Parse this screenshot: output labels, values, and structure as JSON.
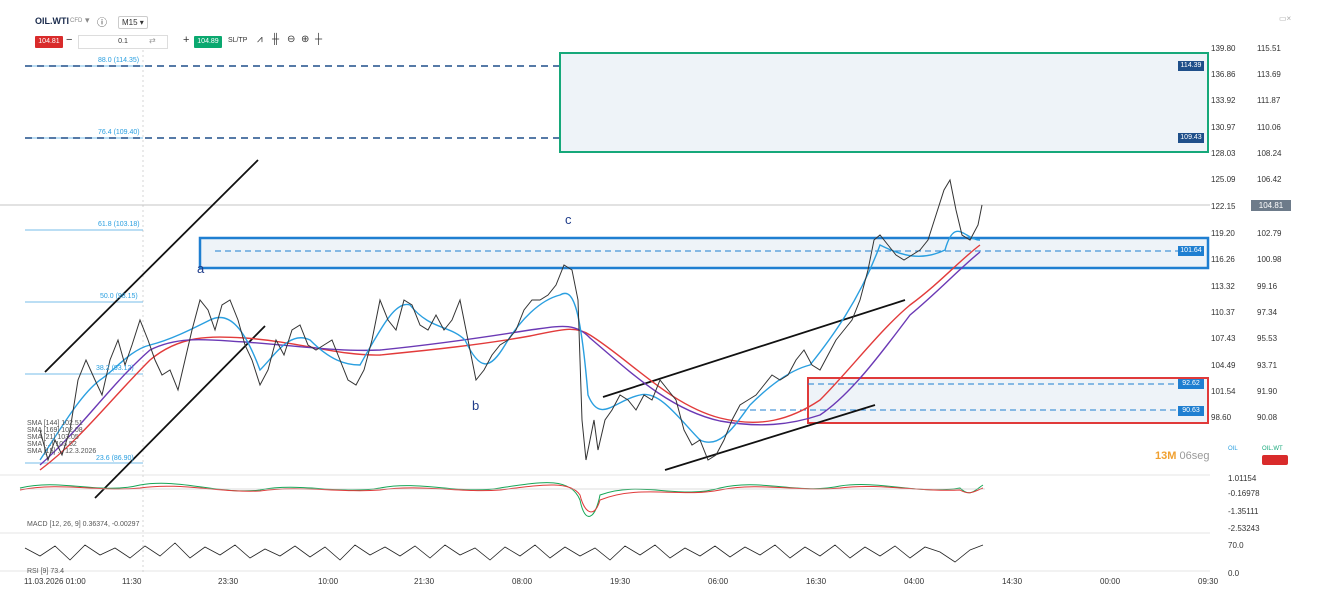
{
  "header": {
    "symbol": "OIL.WTI",
    "symbol_sub": "CFD",
    "timeframe": "M15 ▾",
    "sell_price": "104.81",
    "volume": "0.1",
    "buy_price": "104.89",
    "sltp_label": "SL/TP"
  },
  "price_axis_left": [
    "139.80",
    "136.86",
    "133.92",
    "130.97",
    "128.03",
    "125.09",
    "122.15",
    "119.20",
    "116.26",
    "113.32",
    "110.37",
    "107.43",
    "104.49",
    "101.54",
    "98.60"
  ],
  "price_axis_right": [
    "115.51",
    "113.69",
    "111.87",
    "110.06",
    "108.24",
    "106.42",
    "104.81",
    "102.79",
    "100.98",
    "99.16",
    "97.34",
    "95.53",
    "93.71",
    "91.90",
    "90.08"
  ],
  "current_price_label": "104.81",
  "level_labels": {
    "upper_1": "114.39",
    "upper_2": "109.43",
    "zone_mid": "101.64",
    "lower_1": "92.62",
    "lower_2": "90.63"
  },
  "fib_labels": {
    "f88": "88.0 (114.35)",
    "f764": "76.4 (109.40)",
    "f618": "61.8 (103.18)",
    "f50": "50.0 (98.15)",
    "f382": "38.2 (93.12)",
    "f236": "23.6 (86.90)"
  },
  "wave_labels": {
    "a": "a",
    "b": "b",
    "c": "c"
  },
  "indicators": {
    "sma1": "SMA [144] 102.51",
    "sma2": "SMA [169] 102.08",
    "sma3": "SMA [21] 103.05",
    "sma4": "SMA [...] 103.52",
    "sma5": "SMA [15] ... 12.3.2026",
    "macd": "MACD [12, 26, 9] 0.36374, -0.00297",
    "rsi": "RSI [9] 73.4"
  },
  "macd_axis": [
    "1.01154",
    "-0.16978",
    "-1.35111",
    "-2.53243"
  ],
  "rsi_axis": [
    "70.0",
    "0.0"
  ],
  "time_axis": [
    "11.03.2026 01:00",
    "11:30",
    "23:30",
    "10:00",
    "21:30",
    "08:00",
    "19:30",
    "06:00",
    "16:30",
    "04:00",
    "14:30",
    "00:00",
    "09:30"
  ],
  "countdown": {
    "minutes": "13M",
    "seconds": "06seg"
  },
  "legend": {
    "oil": "OIL",
    "oil_wt": "OIL.WT"
  },
  "colors": {
    "sell": "#d92b2b",
    "buy": "#0aa86f",
    "zone_blue": "#1f7fd1",
    "zone_green": "#16a87a",
    "zone_red": "#e03a3a"
  }
}
